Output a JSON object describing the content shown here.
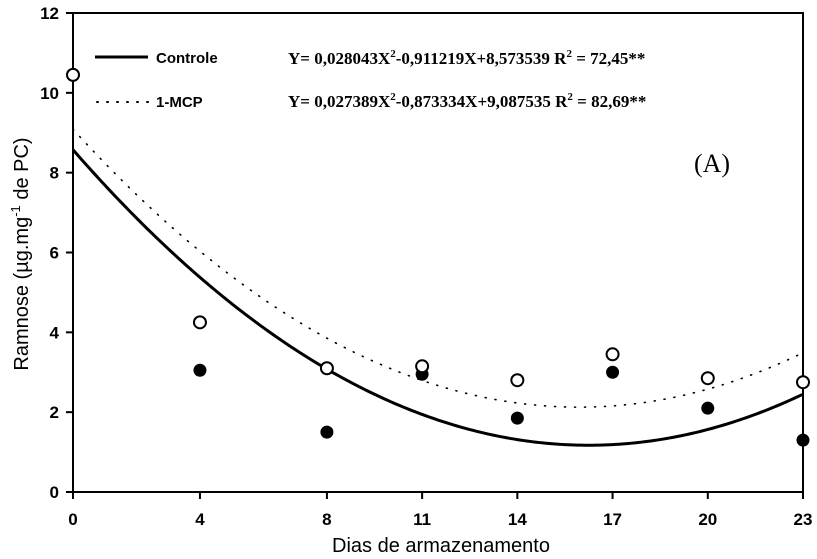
{
  "chart_data": {
    "type": "scatter",
    "panel_label": "(A)",
    "xlabel": "Dias de armazenamento",
    "ylabel_pre": "Ramnose (µg.mg",
    "ylabel_sup": "-1",
    "ylabel_post": " de PC)",
    "x_categories": [
      "0",
      "4",
      "8",
      "11",
      "14",
      "17",
      "20",
      "23"
    ],
    "x": [
      0,
      4,
      8,
      11,
      14,
      17,
      20,
      23
    ],
    "xlim": [
      0,
      23
    ],
    "ylim": [
      0,
      12
    ],
    "yticks": [
      "0",
      "2",
      "4",
      "6",
      "8",
      "10",
      "12"
    ],
    "grid": false,
    "legend_position": "top-left",
    "series": [
      {
        "name": "Controle",
        "marker": "filled-circle",
        "line_style": "solid",
        "values": [
          null,
          3.05,
          1.5,
          2.95,
          1.85,
          3.0,
          2.1,
          1.3
        ],
        "fit": {
          "a": 0.028043,
          "b": -0.911219,
          "c": 8.573539
        },
        "equation": {
          "lhs": "Y= 0,028043X",
          "exp1": "2",
          "mid": "-0,911219X+8,573539 R",
          "exp2": "2",
          "rhs": " = 72,45**"
        }
      },
      {
        "name": "1-MCP",
        "marker": "open-circle",
        "line_style": "dotted",
        "values": [
          10.45,
          4.25,
          3.1,
          3.15,
          2.8,
          3.45,
          2.85,
          2.75
        ],
        "fit": {
          "a": 0.027389,
          "b": -0.873334,
          "c": 9.087535
        },
        "equation": {
          "lhs": "Y= 0,027389X",
          "exp1": "2",
          "mid": "-0,873334X+9,087535 R",
          "exp2": "2",
          "rhs": " = 82,69**"
        }
      }
    ]
  }
}
